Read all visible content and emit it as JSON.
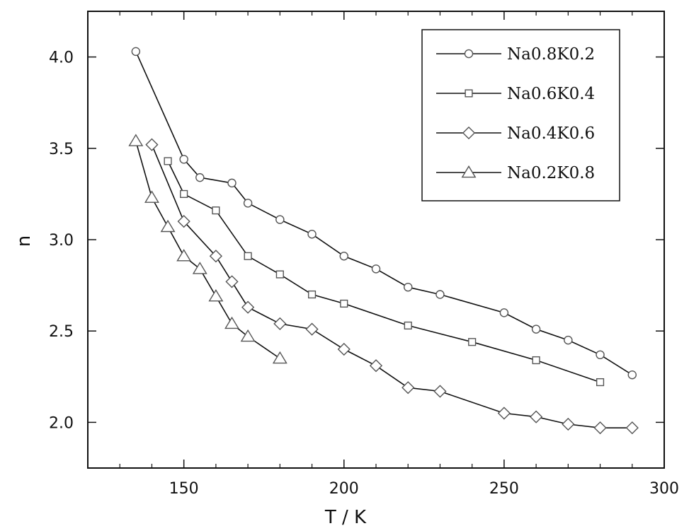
{
  "chart_data": {
    "type": "line",
    "title": "",
    "xlabel": "T /  K",
    "ylabel": "n",
    "xlim": [
      120,
      300
    ],
    "ylim": [
      1.75,
      4.25
    ],
    "xticks": [
      150,
      200,
      250,
      300
    ],
    "xticks_minor": [
      130,
      140,
      160,
      170,
      180,
      190,
      210,
      220,
      230,
      240,
      260,
      270,
      280,
      290
    ],
    "yticks": [
      2.0,
      2.5,
      3.0,
      3.5,
      4.0
    ],
    "ytick_labels": [
      "2.0",
      "2.5",
      "3.0",
      "3.5",
      "4.0"
    ],
    "grid": false,
    "legend_position": "top-right",
    "series": [
      {
        "name": "Na0.8K0.2",
        "marker": "circle",
        "x": [
          135,
          150,
          155,
          165,
          170,
          180,
          190,
          200,
          210,
          220,
          230,
          250,
          260,
          270,
          280,
          290
        ],
        "y": [
          4.03,
          3.44,
          3.34,
          3.31,
          3.2,
          3.11,
          3.03,
          2.91,
          2.84,
          2.74,
          2.7,
          2.6,
          2.51,
          2.45,
          2.37,
          2.26
        ]
      },
      {
        "name": "Na0.6K0.4",
        "marker": "square",
        "x": [
          145,
          150,
          160,
          170,
          180,
          190,
          200,
          220,
          240,
          260,
          280
        ],
        "y": [
          3.43,
          3.25,
          3.16,
          2.91,
          2.81,
          2.7,
          2.65,
          2.53,
          2.44,
          2.34,
          2.22
        ]
      },
      {
        "name": "Na0.4K0.6",
        "marker": "diamond",
        "x": [
          140,
          150,
          160,
          165,
          170,
          180,
          190,
          200,
          210,
          220,
          230,
          250,
          260,
          270,
          280,
          290
        ],
        "y": [
          3.52,
          3.1,
          2.91,
          2.77,
          2.63,
          2.54,
          2.51,
          2.4,
          2.31,
          2.19,
          2.17,
          2.05,
          2.03,
          1.99,
          1.97,
          1.97
        ]
      },
      {
        "name": "Na0.2K0.8",
        "marker": "triangle",
        "x": [
          135,
          140,
          145,
          150,
          155,
          160,
          165,
          170,
          180
        ],
        "y": [
          3.54,
          3.23,
          3.07,
          2.91,
          2.84,
          2.69,
          2.54,
          2.47,
          2.35
        ]
      }
    ]
  },
  "colors": {
    "line": "#111111",
    "marker_stroke": "#555555",
    "marker_fill": "#ffffff"
  }
}
